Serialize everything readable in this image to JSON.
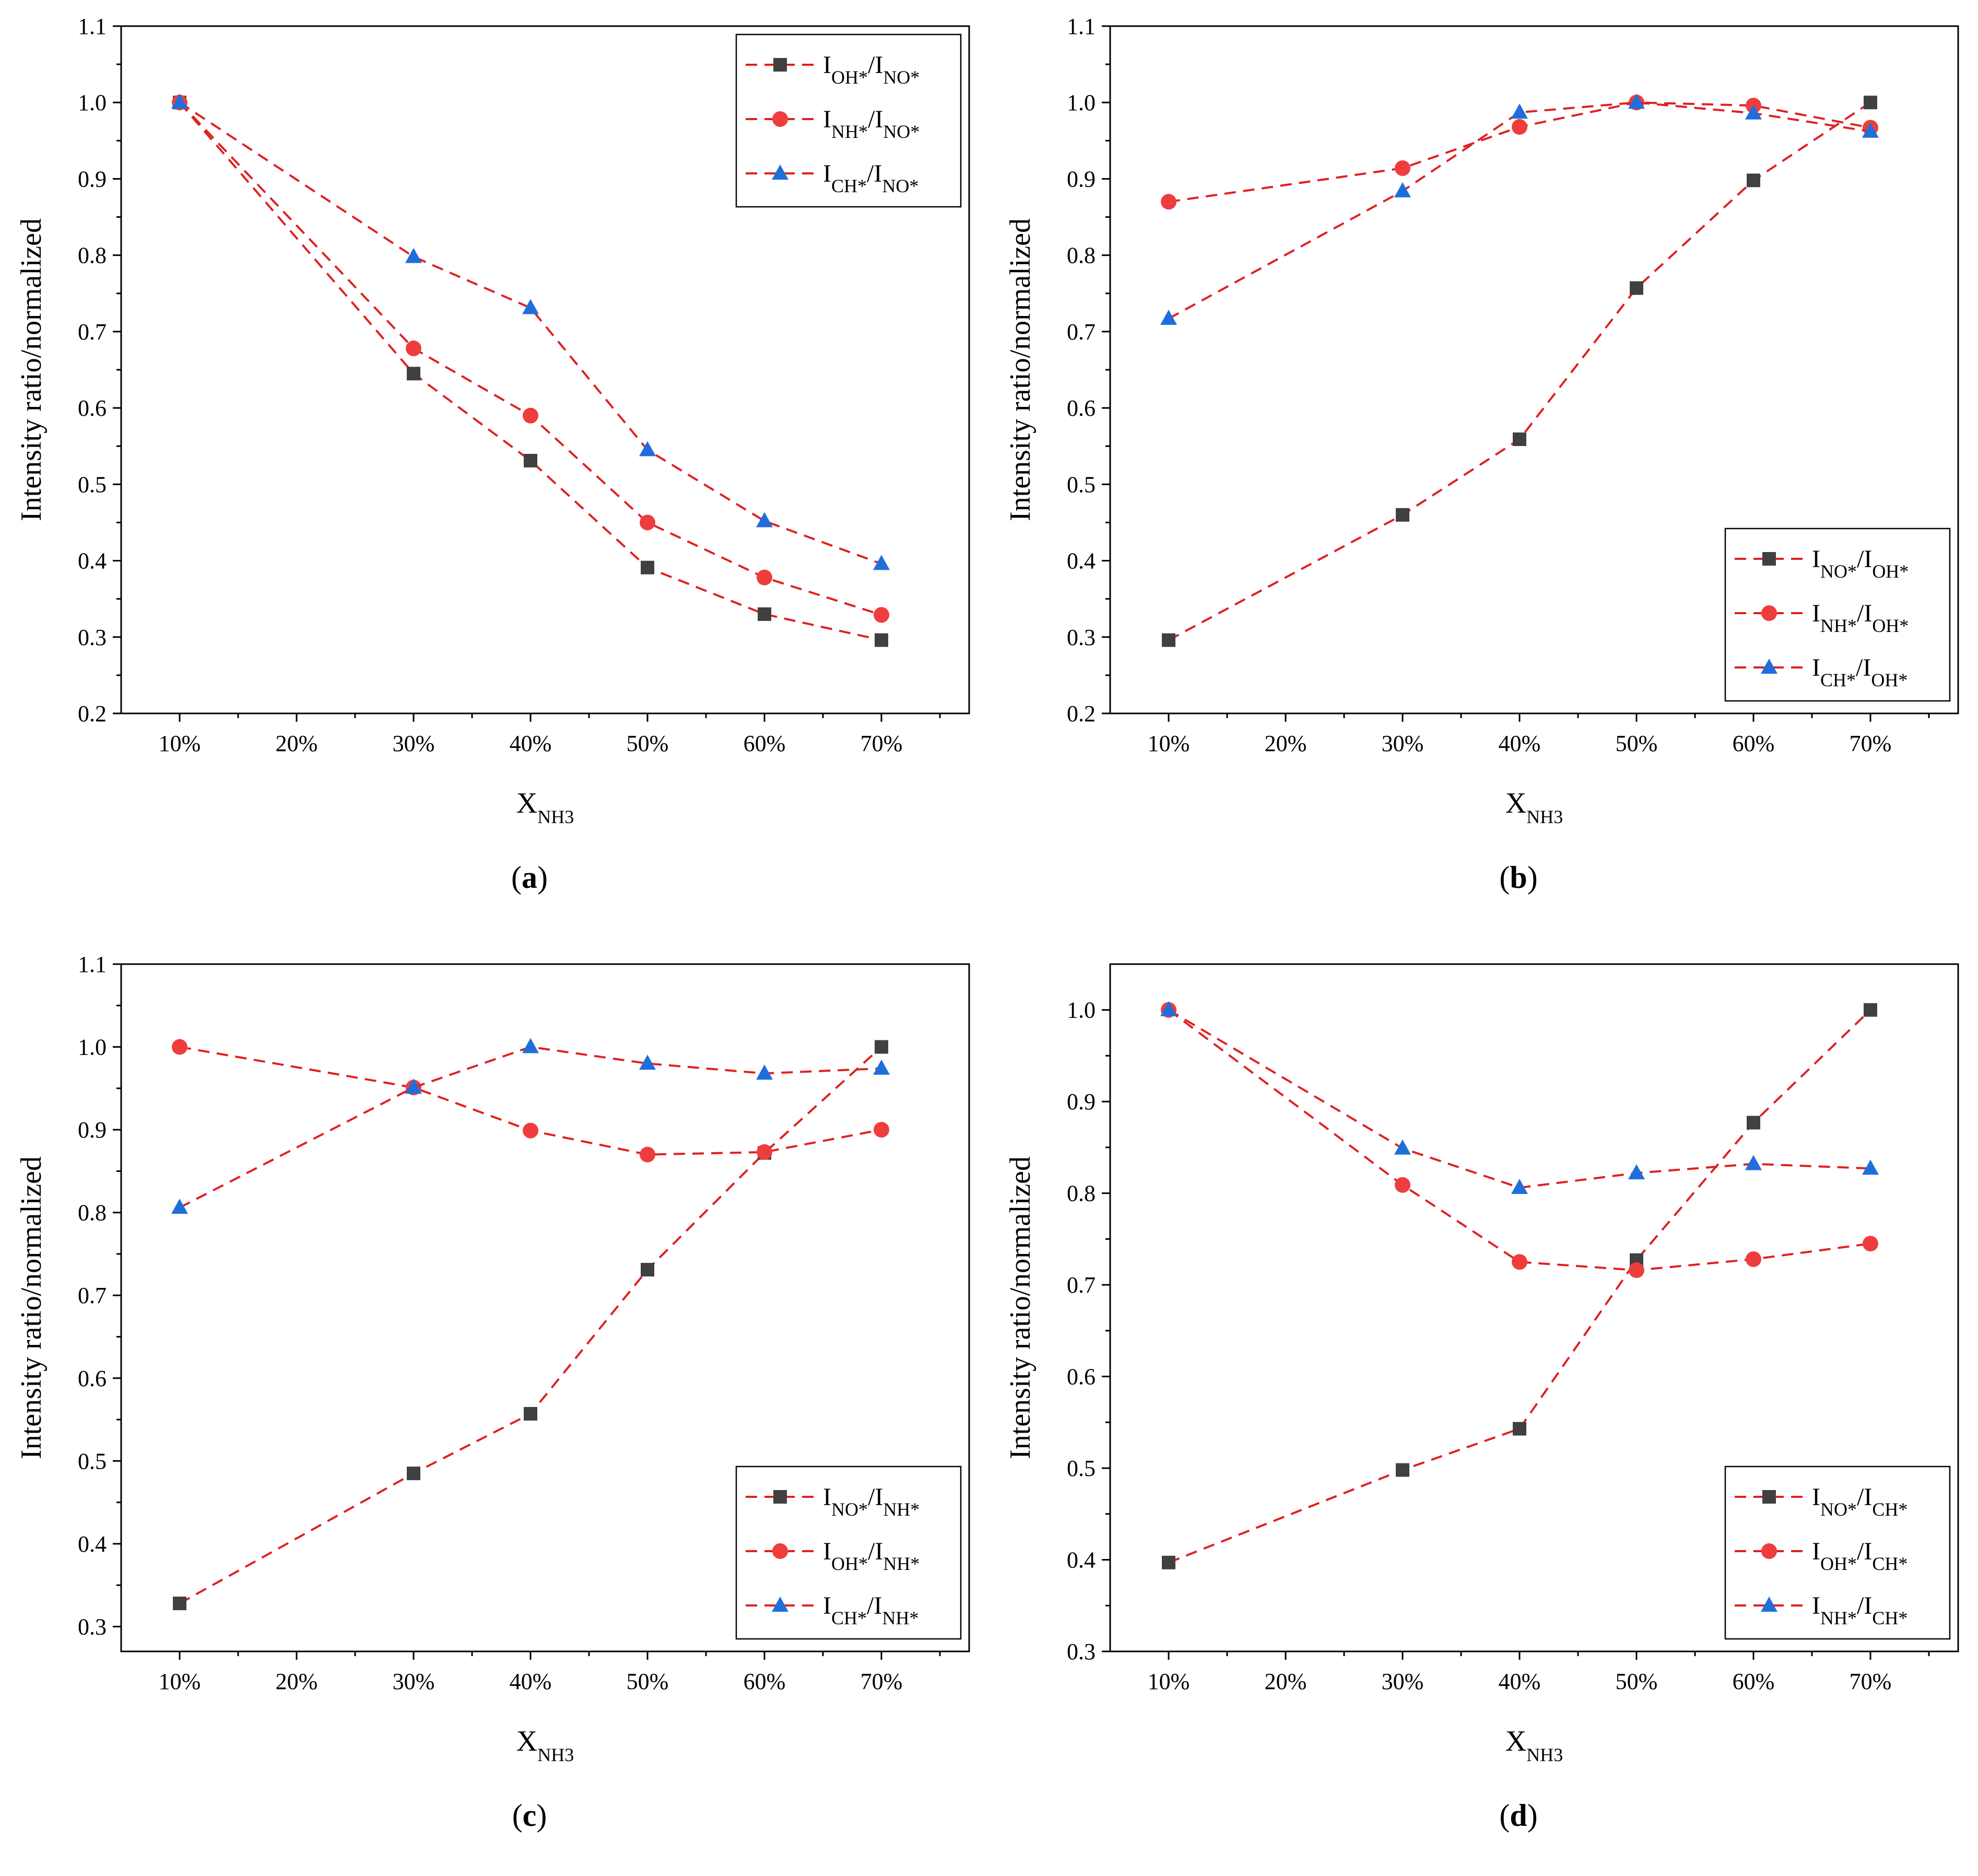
{
  "colors": {
    "line": "#e02020",
    "square": "#404040",
    "circle": "#ef3d3d",
    "triangle": "#1f6fdb"
  },
  "chart_data": [
    {
      "type": "line",
      "caption": "a",
      "xlabel": "X",
      "xlabel_sub": "NH3",
      "ylabel": "Intensity ratio/normalized",
      "categories": [
        "10%",
        "20%",
        "30%",
        "40%",
        "50%",
        "60%",
        "70%"
      ],
      "yticks": [
        "0.2",
        "0.3",
        "0.4",
        "0.5",
        "0.6",
        "0.7",
        "0.8",
        "0.9",
        "1.0",
        "1.1"
      ],
      "ylim": [
        0.2,
        1.1
      ],
      "legend_position": "top-right",
      "series": [
        {
          "name": "I_OH*/I_NO*",
          "label_parts": [
            [
              "I",
              ""
            ],
            [
              "OH*",
              "sub"
            ],
            [
              "/I",
              ""
            ],
            [
              "NO*",
              "sub"
            ]
          ],
          "marker": "square",
          "x": [
            "10%",
            "30%",
            "40%",
            "50%",
            "60%",
            "70%"
          ],
          "values": [
            1.0,
            0.645,
            0.531,
            0.391,
            0.33,
            0.296
          ]
        },
        {
          "name": "I_NH*/I_NO*",
          "label_parts": [
            [
              "I",
              ""
            ],
            [
              "NH*",
              "sub"
            ],
            [
              "/I",
              ""
            ],
            [
              "NO*",
              "sub"
            ]
          ],
          "marker": "circle",
          "x": [
            "10%",
            "30%",
            "40%",
            "50%",
            "60%",
            "70%"
          ],
          "values": [
            1.0,
            0.678,
            0.59,
            0.45,
            0.378,
            0.329
          ]
        },
        {
          "name": "I_CH*/I_NO*",
          "label_parts": [
            [
              "I",
              ""
            ],
            [
              "CH*",
              "sub"
            ],
            [
              "/I",
              ""
            ],
            [
              "NO*",
              "sub"
            ]
          ],
          "marker": "triangle",
          "x": [
            "10%",
            "30%",
            "40%",
            "50%",
            "60%",
            "70%"
          ],
          "values": [
            1.0,
            0.798,
            0.731,
            0.545,
            0.452,
            0.396
          ]
        }
      ]
    },
    {
      "type": "line",
      "caption": "b",
      "xlabel": "X",
      "xlabel_sub": "NH3",
      "ylabel": "Intensity ratio/normalized",
      "categories": [
        "10%",
        "20%",
        "30%",
        "40%",
        "50%",
        "60%",
        "70%"
      ],
      "yticks": [
        "0.2",
        "0.3",
        "0.4",
        "0.5",
        "0.6",
        "0.7",
        "0.8",
        "0.9",
        "1.0",
        "1.1"
      ],
      "ylim": [
        0.2,
        1.1
      ],
      "legend_position": "bottom-right",
      "series": [
        {
          "name": "I_NO*/I_OH*",
          "label_parts": [
            [
              "I",
              ""
            ],
            [
              "NO*",
              "sub"
            ],
            [
              "/I",
              ""
            ],
            [
              "OH*",
              "sub"
            ]
          ],
          "marker": "square",
          "x": [
            "10%",
            "30%",
            "40%",
            "50%",
            "60%",
            "70%"
          ],
          "values": [
            0.296,
            0.46,
            0.559,
            0.757,
            0.898,
            1.0
          ]
        },
        {
          "name": "I_NH*/I_OH*",
          "label_parts": [
            [
              "I",
              ""
            ],
            [
              "NH*",
              "sub"
            ],
            [
              "/I",
              ""
            ],
            [
              "OH*",
              "sub"
            ]
          ],
          "marker": "circle",
          "x": [
            "10%",
            "30%",
            "40%",
            "50%",
            "60%",
            "70%"
          ],
          "values": [
            0.87,
            0.914,
            0.968,
            1.0,
            0.996,
            0.967
          ]
        },
        {
          "name": "I_CH*/I_OH*",
          "label_parts": [
            [
              "I",
              ""
            ],
            [
              "CH*",
              "sub"
            ],
            [
              "/I",
              ""
            ],
            [
              "OH*",
              "sub"
            ]
          ],
          "marker": "triangle",
          "x": [
            "10%",
            "30%",
            "40%",
            "50%",
            "60%",
            "70%"
          ],
          "values": [
            0.717,
            0.884,
            0.987,
            1.0,
            0.986,
            0.962
          ]
        }
      ]
    },
    {
      "type": "line",
      "caption": "c",
      "xlabel": "X",
      "xlabel_sub": "NH3",
      "ylabel": "Intensity ratio/normalized",
      "categories": [
        "10%",
        "20%",
        "30%",
        "40%",
        "50%",
        "60%",
        "70%"
      ],
      "yticks": [
        "0.3",
        "0.4",
        "0.5",
        "0.6",
        "0.7",
        "0.8",
        "0.9",
        "1.0",
        "1.1"
      ],
      "ylim": [
        0.27,
        1.1
      ],
      "legend_position": "bottom-right",
      "series": [
        {
          "name": "I_NO*/I_NH*",
          "label_parts": [
            [
              "I",
              ""
            ],
            [
              "NO*",
              "sub"
            ],
            [
              "/I",
              ""
            ],
            [
              "NH*",
              "sub"
            ]
          ],
          "marker": "square",
          "x": [
            "10%",
            "30%",
            "40%",
            "50%",
            "60%",
            "70%"
          ],
          "values": [
            0.328,
            0.485,
            0.557,
            0.731,
            0.872,
            1.0
          ]
        },
        {
          "name": "I_OH*/I_NH*",
          "label_parts": [
            [
              "I",
              ""
            ],
            [
              "OH*",
              "sub"
            ],
            [
              "/I",
              ""
            ],
            [
              "NH*",
              "sub"
            ]
          ],
          "marker": "circle",
          "x": [
            "10%",
            "30%",
            "40%",
            "50%",
            "60%",
            "70%"
          ],
          "values": [
            1.0,
            0.951,
            0.899,
            0.87,
            0.873,
            0.9
          ]
        },
        {
          "name": "I_CH*/I_NH*",
          "label_parts": [
            [
              "I",
              ""
            ],
            [
              "CH*",
              "sub"
            ],
            [
              "/I",
              ""
            ],
            [
              "NH*",
              "sub"
            ]
          ],
          "marker": "triangle",
          "x": [
            "10%",
            "30%",
            "40%",
            "50%",
            "60%",
            "70%"
          ],
          "values": [
            0.806,
            0.951,
            1.0,
            0.98,
            0.968,
            0.974
          ]
        }
      ]
    },
    {
      "type": "line",
      "caption": "d",
      "xlabel": "X",
      "xlabel_sub": "NH3",
      "ylabel": "Intensity ratio/normalized",
      "categories": [
        "10%",
        "20%",
        "30%",
        "40%",
        "50%",
        "60%",
        "70%"
      ],
      "yticks": [
        "0.3",
        "0.4",
        "0.5",
        "0.6",
        "0.7",
        "0.8",
        "0.9",
        "1.0"
      ],
      "ylim": [
        0.3,
        1.05
      ],
      "legend_position": "bottom-right",
      "series": [
        {
          "name": "I_NO*/I_CH*",
          "label_parts": [
            [
              "I",
              ""
            ],
            [
              "NO*",
              "sub"
            ],
            [
              "/I",
              ""
            ],
            [
              "CH*",
              "sub"
            ]
          ],
          "marker": "square",
          "x": [
            "10%",
            "30%",
            "40%",
            "50%",
            "60%",
            "70%"
          ],
          "values": [
            0.397,
            0.498,
            0.543,
            0.727,
            0.877,
            1.0
          ]
        },
        {
          "name": "I_OH*/I_CH*",
          "label_parts": [
            [
              "I",
              ""
            ],
            [
              "OH*",
              "sub"
            ],
            [
              "/I",
              ""
            ],
            [
              "CH*",
              "sub"
            ]
          ],
          "marker": "circle",
          "x": [
            "10%",
            "30%",
            "40%",
            "50%",
            "60%",
            "70%"
          ],
          "values": [
            1.0,
            0.809,
            0.725,
            0.716,
            0.728,
            0.745
          ]
        },
        {
          "name": "I_NH*/I_CH*",
          "label_parts": [
            [
              "I",
              ""
            ],
            [
              "NH*",
              "sub"
            ],
            [
              "/I",
              ""
            ],
            [
              "CH*",
              "sub"
            ]
          ],
          "marker": "triangle",
          "x": [
            "10%",
            "30%",
            "40%",
            "50%",
            "60%",
            "70%"
          ],
          "values": [
            1.0,
            0.849,
            0.806,
            0.822,
            0.832,
            0.827
          ]
        }
      ]
    }
  ]
}
